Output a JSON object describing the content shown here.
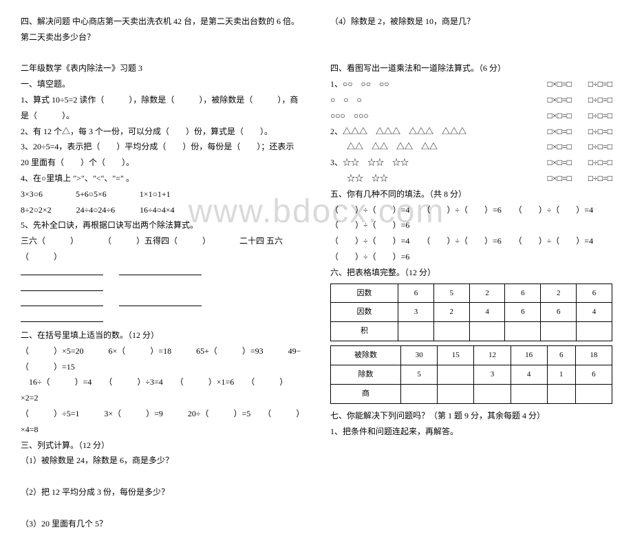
{
  "watermark": "www.bdocx.com",
  "left": {
    "q4": "四、解决问题 中心商店第一天卖出洗衣机 42 台，是第二天卖出台数的 6 倍。第二天卖出多少台？",
    "title": "二年级数学《表内除法一》习题 3",
    "s1title": " 一、填空题。",
    "s1_1": "1、算式 10÷5=2 读作（　　　），除数是（　　　），被除数是（　　　），商是（　　　）。",
    "s1_2": "2、有 12 个△，每 3 个一份，可以分成（　　）份，算式是（　　）。",
    "s1_3": "3、20÷5=4，表示把（　　）平均分成（　　）份，每份是（　　）；还表示 20 里面有（　　）个（　　）。",
    "s1_4": "4、在○里填上 \">\"、\"<\"、\"=\" 。",
    "s1_4a": "3×3○6　　　　5+6○5×6　　　　1×1○1+1",
    "s1_4b": "8÷2○2×2　　　24÷4○24÷6　　　16÷4○4×4",
    "s1_5": "5、先补全口诀，再根据口诀写出两个除法算式。",
    "s1_5a": "三六（　　　）　　　　（　　　）五得四（　　　）　　　　二十四  五六",
    "s1_5b": "（　　　）",
    "s2title": "二、在括号里填上适当的数。（12 分）",
    "s2_a": "（　　　）×5=20　　　6×（　　　）=18　　　65+（　　　）=93　　　49−（　　　）=15",
    "s2_b": "　16÷（　　　）=4　　（　　　）÷3=4　　（　　　）×1=6　　（　　　）×2=2",
    "s2_c": "（　　　）÷5=1　　　3×（　　　）=9　　　20÷（　　　）=5　　（　　　）×4=8",
    "s3title": "三、列式计算。（12 分）",
    "s3_1": "（1）被除数是 24，除数是 6，商是多少？",
    "s3_2": "（2）把 12 平均分成 3 份，每份是多少？",
    "s3_3": "（3）20 里面有几个 5？"
  },
  "right": {
    "q_top": "（4）除数是 2，被除数是 10，商是几？",
    "s4title": "四、看图写出一道乘法和一道除法算式。（6 分）",
    "row1sym": "1、○○　○○　○○",
    "row2sym": "○　○　○",
    "row3sym": "○○○　○○○",
    "row4sym": "2、△△△　△△△　△△△　△△△",
    "row5sym": "　　△△　△△　△△　△△",
    "row6sym": "3、☆☆　☆☆　☆☆",
    "row7sym": "　　☆☆　☆☆",
    "boxeq_mul": "□×□=□",
    "boxeq_div": "□÷□=□",
    "s5title": "五、你有几种不同的填法。（共 8 分）",
    "s5_a": "（　　）÷（　　）=4　　（　　）÷（　　）=6　　（　　）÷（　　）=4　　（　　）÷（　　）=6",
    "s5_b": "（　　）÷（　　）=4　　（　　）÷（　　）=6　　（　　）÷（　　）=4　　（　　）÷（　　）=6",
    "s6title": "六、把表格填完整。（12 分）",
    "t1": {
      "r1": [
        "因数",
        "6",
        "5",
        "2",
        "6",
        "2",
        "6"
      ],
      "r2": [
        "因数",
        "3",
        "2",
        "4",
        "6",
        "6",
        "4"
      ],
      "r3": [
        "积",
        "",
        "",
        "",
        "",
        "",
        ""
      ]
    },
    "t2": {
      "r1": [
        "被除数",
        "30",
        "15",
        "12",
        "16",
        "6",
        "18"
      ],
      "r2": [
        "除数",
        "5",
        "",
        "3",
        "4",
        "1",
        "6"
      ],
      "r3": [
        "商",
        "",
        "",
        "",
        "",
        "",
        ""
      ]
    },
    "s7title": "七、你能解决下列问题吗？（第 1 题 9 分，其余每题 4 分）",
    "s7_1": "1、把条件和问题连起来，再解答。"
  }
}
